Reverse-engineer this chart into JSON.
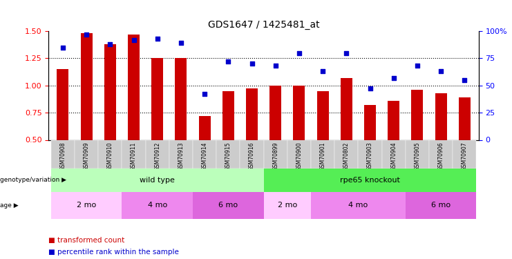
{
  "title": "GDS1647 / 1425481_at",
  "samples": [
    "GSM70908",
    "GSM70909",
    "GSM70910",
    "GSM70911",
    "GSM70912",
    "GSM70913",
    "GSM70914",
    "GSM70915",
    "GSM70916",
    "GSM70899",
    "GSM70900",
    "GSM70901",
    "GSM70802",
    "GSM70903",
    "GSM70904",
    "GSM70905",
    "GSM70906",
    "GSM70907"
  ],
  "bar_values": [
    1.15,
    1.48,
    1.38,
    1.47,
    1.25,
    1.25,
    0.72,
    0.95,
    0.97,
    1.0,
    1.0,
    0.95,
    1.07,
    0.82,
    0.86,
    0.96,
    0.93,
    0.89
  ],
  "scatter_values": [
    85,
    97,
    88,
    92,
    93,
    89,
    42,
    72,
    70,
    68,
    80,
    63,
    80,
    47,
    57,
    68,
    63,
    55
  ],
  "ylim_left": [
    0.5,
    1.5
  ],
  "ylim_right": [
    0,
    100
  ],
  "yticks_left": [
    0.5,
    0.75,
    1.0,
    1.25,
    1.5
  ],
  "yticks_right": [
    0,
    25,
    50,
    75,
    100
  ],
  "ytick_right_labels": [
    "0",
    "25",
    "50",
    "75",
    "100%"
  ],
  "bar_color": "#cc0000",
  "scatter_color": "#0000cc",
  "bar_width": 0.5,
  "figsize": [
    7.41,
    3.75
  ],
  "dpi": 100,
  "bg_color": "#ffffff",
  "title_fontsize": 10,
  "geno_groups": [
    {
      "label": "wild type",
      "start": 0,
      "end": 8,
      "color": "#bbffbb"
    },
    {
      "label": "rpe65 knockout",
      "start": 9,
      "end": 17,
      "color": "#55ee55"
    }
  ],
  "age_groups": [
    {
      "label": "2 mo",
      "start": 0,
      "end": 2,
      "color": "#ffccff"
    },
    {
      "label": "4 mo",
      "start": 3,
      "end": 5,
      "color": "#ee88ee"
    },
    {
      "label": "6 mo",
      "start": 6,
      "end": 8,
      "color": "#dd66dd"
    },
    {
      "label": "2 mo",
      "start": 9,
      "end": 10,
      "color": "#ffccff"
    },
    {
      "label": "4 mo",
      "start": 11,
      "end": 14,
      "color": "#ee88ee"
    },
    {
      "label": "6 mo",
      "start": 15,
      "end": 17,
      "color": "#dd66dd"
    }
  ],
  "genotype_label": "genotype/variation",
  "age_label": "age",
  "legend_bar_label": "transformed count",
  "legend_scatter_label": "percentile rank within the sample",
  "dotted_lines": [
    0.75,
    1.0,
    1.25
  ],
  "sample_bg": "#cccccc"
}
